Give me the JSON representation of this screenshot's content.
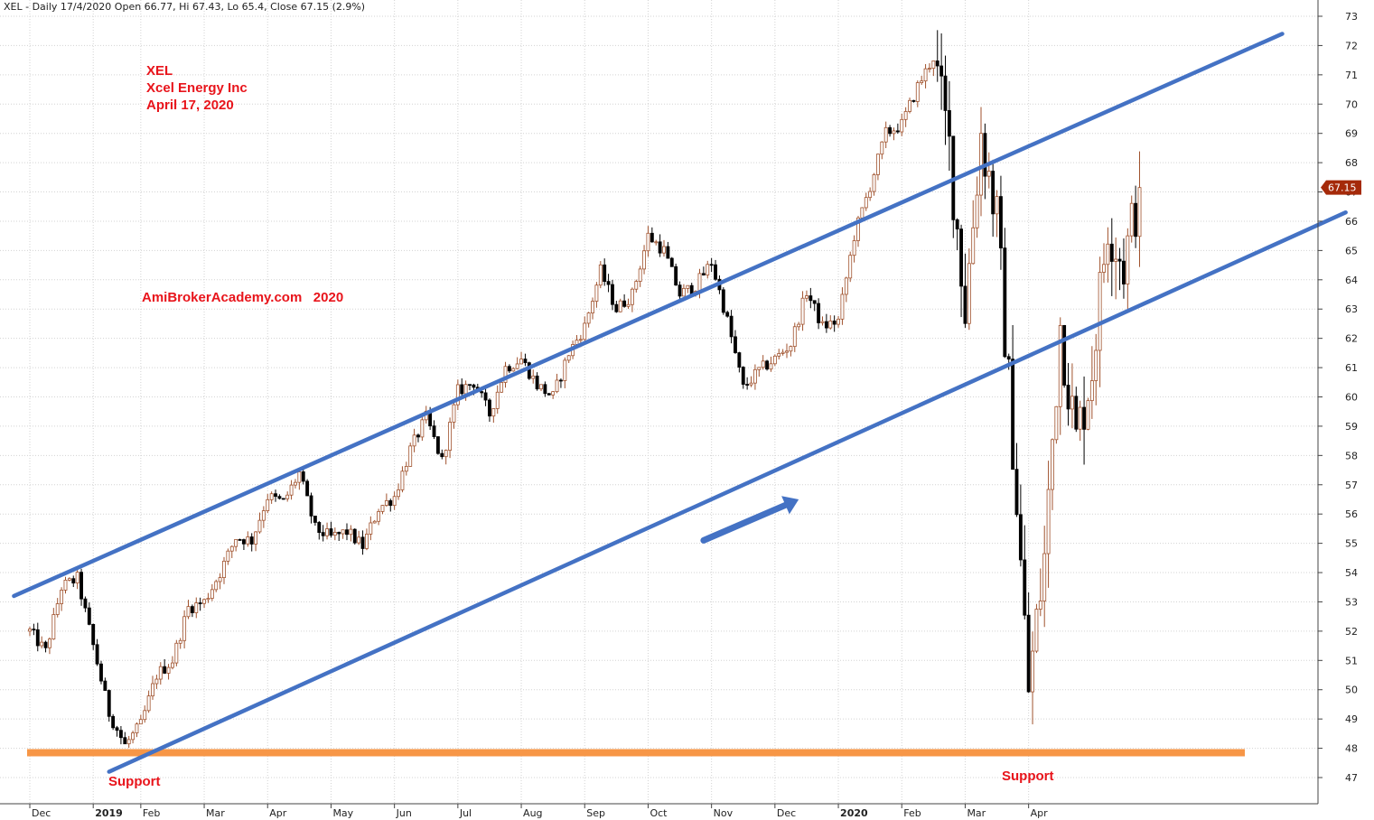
{
  "header": {
    "text": "XEL - Daily 17/4/2020 Open 66.77, Hi 67.43, Lo 65.4, Close 67.15 (2.9%)"
  },
  "annotations": {
    "ticker": "XEL",
    "company": "Xcel Energy Inc",
    "date": "April 17, 2020",
    "watermark": "AmiBrokerAcademy.com   2020",
    "support_left": "Support",
    "support_right": "Support"
  },
  "colors": {
    "up_candle": "#a0522d",
    "down_candle": "#000000",
    "trend_line": "#4472c4",
    "support_line": "#f79646",
    "annotation_text": "#e8141b",
    "last_price_badge": "#a52a0a",
    "grid": "#d3d3d3"
  },
  "chart_data": {
    "type": "candlestick",
    "ylim": [
      46.5,
      73.5
    ],
    "y_ticks": [
      47,
      48,
      49,
      50,
      51,
      52,
      53,
      54,
      55,
      56,
      57,
      58,
      59,
      60,
      61,
      62,
      63,
      64,
      65,
      66,
      67,
      68,
      69,
      70,
      71,
      72,
      73
    ],
    "x_tick_labels": [
      {
        "label": "Dec",
        "index": 0,
        "bold": false
      },
      {
        "label": "2019",
        "index": 4,
        "bold": true
      },
      {
        "label": "Feb",
        "index": 7,
        "bold": false
      },
      {
        "label": "Mar",
        "index": 11,
        "bold": false
      },
      {
        "label": "Apr",
        "index": 15,
        "bold": false
      },
      {
        "label": "May",
        "index": 19,
        "bold": false
      },
      {
        "label": "Jun",
        "index": 23,
        "bold": false
      },
      {
        "label": "Jul",
        "index": 27,
        "bold": false
      },
      {
        "label": "Aug",
        "index": 31,
        "bold": false
      },
      {
        "label": "Sep",
        "index": 35,
        "bold": false
      },
      {
        "label": "Oct",
        "index": 39,
        "bold": false
      },
      {
        "label": "Nov",
        "index": 43,
        "bold": false
      },
      {
        "label": "Dec",
        "index": 47,
        "bold": false
      },
      {
        "label": "2020",
        "index": 51,
        "bold": true
      },
      {
        "label": "Feb",
        "index": 55,
        "bold": false
      },
      {
        "label": "Mar",
        "index": 59,
        "bold": false
      },
      {
        "label": "Apr",
        "index": 63,
        "bold": false
      }
    ],
    "last_price": 67.15,
    "price_path": [
      [
        0,
        52.0
      ],
      [
        1,
        51.3
      ],
      [
        2,
        53.5
      ],
      [
        3,
        53.8
      ],
      [
        4,
        51.5
      ],
      [
        5,
        49.2
      ],
      [
        6,
        48.1
      ],
      [
        7,
        48.8
      ],
      [
        8,
        50.5
      ],
      [
        9,
        51.0
      ],
      [
        10,
        52.8
      ],
      [
        11,
        53.0
      ],
      [
        12,
        54.0
      ],
      [
        13,
        55.2
      ],
      [
        14,
        55.1
      ],
      [
        15,
        56.6
      ],
      [
        16,
        56.4
      ],
      [
        17,
        57.4
      ],
      [
        18,
        55.5
      ],
      [
        19,
        55.2
      ],
      [
        20,
        55.4
      ],
      [
        21,
        54.9
      ],
      [
        22,
        56.2
      ],
      [
        23,
        56.6
      ],
      [
        24,
        58.2
      ],
      [
        25,
        59.3
      ],
      [
        26,
        57.8
      ],
      [
        27,
        60.2
      ],
      [
        28,
        60.5
      ],
      [
        29,
        59.4
      ],
      [
        30,
        61.0
      ],
      [
        31,
        61.3
      ],
      [
        32,
        60.4
      ],
      [
        33,
        60.0
      ],
      [
        34,
        61.5
      ],
      [
        35,
        62.4
      ],
      [
        36,
        64.3
      ],
      [
        37,
        63.0
      ],
      [
        38,
        63.5
      ],
      [
        39,
        65.5
      ],
      [
        40,
        65.0
      ],
      [
        41,
        63.5
      ],
      [
        42,
        63.8
      ],
      [
        43,
        64.6
      ],
      [
        44,
        62.6
      ],
      [
        45,
        60.3
      ],
      [
        46,
        60.9
      ],
      [
        47,
        61.3
      ],
      [
        48,
        61.8
      ],
      [
        49,
        63.6
      ],
      [
        50,
        62.4
      ],
      [
        51,
        62.6
      ],
      [
        52,
        65.5
      ],
      [
        53,
        67.2
      ],
      [
        54,
        69.0
      ],
      [
        55,
        69.3
      ],
      [
        56,
        70.6
      ],
      [
        57,
        71.6
      ],
      [
        58,
        68.5
      ],
      [
        59,
        63.0
      ],
      [
        60,
        69.0
      ],
      [
        61,
        66.0
      ],
      [
        62,
        58.5
      ],
      [
        63,
        50.0
      ],
      [
        64,
        54.5
      ],
      [
        65,
        62.5
      ],
      [
        66,
        58.5
      ],
      [
        67,
        61.0
      ],
      [
        68,
        66.0
      ],
      [
        69,
        64.5
      ],
      [
        70,
        67.15
      ]
    ],
    "last_index": 70,
    "trend_lines": [
      {
        "name": "upper channel",
        "from": [
          -1,
          53.2
        ],
        "to": [
          79,
          72.4
        ]
      },
      {
        "name": "lower channel",
        "from": [
          5,
          47.2
        ],
        "to": [
          83,
          66.3
        ]
      }
    ],
    "support_level": 47.85,
    "arrow": {
      "from": [
        42.5,
        55.1
      ],
      "to": [
        48.5,
        56.5
      ]
    }
  }
}
